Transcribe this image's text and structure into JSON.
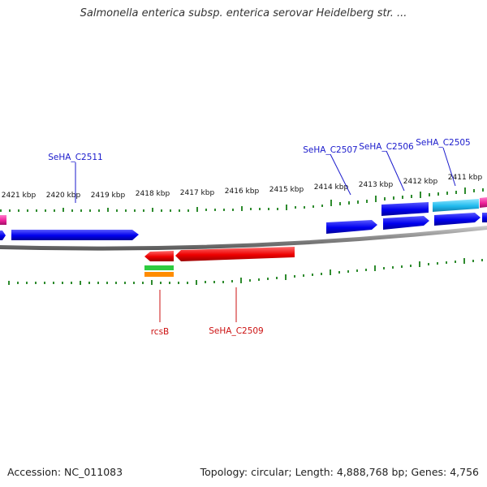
{
  "title": "Salmonella enterica subsp. enterica serovar Heidelberg str. ...",
  "footer": {
    "accession": "Accession: NC_011083",
    "summary": "Topology: circular; Length: 4,888,768 bp; Genes: 4,756"
  },
  "ruler": {
    "ticks": [
      "2421 kbp",
      "2420 kbp",
      "2419 kbp",
      "2418 kbp",
      "2417 kbp",
      "2416 kbp",
      "2415 kbp",
      "2414 kbp",
      "2413 kbp",
      "2412 kbp",
      "2411 kbp"
    ]
  },
  "gene_labels": {
    "top": [
      "SeHA_C2511",
      "SeHA_C2507",
      "SeHA_C2506",
      "SeHA_C2505"
    ],
    "bottom": [
      "rcsB",
      "SeHA_C2509"
    ]
  },
  "colors": {
    "forward_gene": "#0000ee",
    "reverse_gene": "#ee0000",
    "cyan_gene": "#22bbee",
    "magenta_gene": "#ee2299",
    "tick_green": "#2e8b2e",
    "top_label": "#1a1acc",
    "bottom_label": "#cc1111",
    "backbone": "#888888"
  }
}
